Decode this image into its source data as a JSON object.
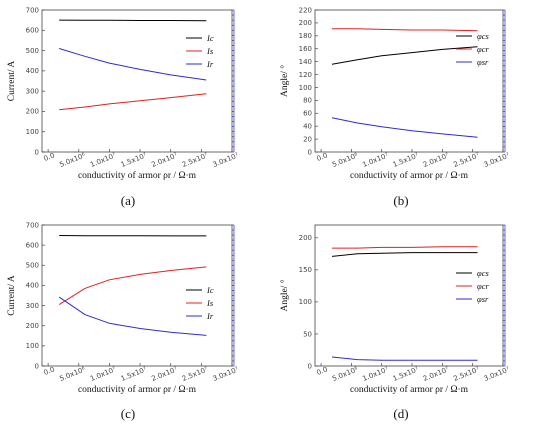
{
  "chart_data": [
    {
      "type": "line",
      "panel_label": "(a)",
      "ylabel": "Current/ A",
      "xlabel": "conductivity of armor ρr / Ω·m",
      "xlim": [
        -1000000,
        30000000
      ],
      "ylim": [
        0,
        700
      ],
      "xticks": [
        0,
        5000000,
        10000000,
        15000000,
        20000000,
        25000000,
        30000000
      ],
      "xtick_labels": [
        "0.0",
        "5.0x10⁶",
        "1.0x10⁷",
        "1.5x10⁷",
        "2.0x10⁷",
        "2.5x10⁷",
        "3.0x10⁷"
      ],
      "yticks": [
        0,
        100,
        200,
        300,
        400,
        500,
        600,
        700
      ],
      "ytick_labels": [
        "0",
        "100",
        "200",
        "300",
        "400",
        "500",
        "600",
        "700"
      ],
      "x": [
        1800000,
        6000000,
        10000000,
        15000000,
        20000000,
        25800000
      ],
      "series": [
        {
          "name": "Ic",
          "color": "#000000",
          "values": [
            650,
            649,
            649,
            648,
            648,
            647
          ]
        },
        {
          "name": "Is",
          "color": "#e02020",
          "values": [
            208,
            222,
            237,
            253,
            268,
            287
          ]
        },
        {
          "name": "Ir",
          "color": "#2b2bd6",
          "values": [
            510,
            472,
            438,
            407,
            380,
            355
          ]
        }
      ]
    },
    {
      "type": "line",
      "panel_label": "(b)",
      "ylabel": "Angle/ °",
      "xlabel": "conductivity of armor ρr / Ω·m",
      "xlim": [
        -1000000,
        30000000
      ],
      "ylim": [
        0,
        220
      ],
      "xticks": [
        0,
        5000000,
        10000000,
        15000000,
        20000000,
        25000000,
        30000000
      ],
      "xtick_labels": [
        "0.0",
        "5.0x10⁶",
        "1.0x10⁷",
        "1.5x10⁷",
        "2.0x10⁷",
        "2.5x10⁷",
        "3.0x10⁷"
      ],
      "yticks": [
        0,
        20,
        40,
        60,
        80,
        100,
        120,
        140,
        160,
        180,
        200,
        220
      ],
      "ytick_labels": [
        "0",
        "20",
        "40",
        "60",
        "80",
        "100",
        "120",
        "140",
        "160",
        "180",
        "200",
        "220"
      ],
      "x": [
        1800000,
        6000000,
        10000000,
        15000000,
        20000000,
        25800000
      ],
      "series": [
        {
          "name": "φcs",
          "color": "#000000",
          "values": [
            136,
            143,
            149,
            154,
            159,
            163
          ]
        },
        {
          "name": "φcr",
          "color": "#e02020",
          "values": [
            191,
            191,
            190,
            189,
            189,
            188
          ]
        },
        {
          "name": "φsr",
          "color": "#2b2bd6",
          "values": [
            53,
            45,
            39,
            33,
            28,
            23
          ]
        }
      ]
    },
    {
      "type": "line",
      "panel_label": "(c)",
      "ylabel": "Current/ A",
      "xlabel": "conductivity of armor ρr / Ω·m",
      "xlim": [
        -1000000,
        30000000
      ],
      "ylim": [
        0,
        700
      ],
      "xticks": [
        0,
        5000000,
        10000000,
        15000000,
        20000000,
        25000000,
        30000000
      ],
      "xtick_labels": [
        "0.0",
        "5.0x10⁶",
        "1.0x10⁷",
        "1.5x10⁷",
        "2.0x10⁷",
        "2.5x10⁷",
        "3.0x10⁷"
      ],
      "yticks": [
        0,
        100,
        200,
        300,
        400,
        500,
        600,
        700
      ],
      "ytick_labels": [
        "0",
        "100",
        "200",
        "300",
        "400",
        "500",
        "600",
        "700"
      ],
      "x": [
        1800000,
        6000000,
        10000000,
        15000000,
        20000000,
        25800000
      ],
      "series": [
        {
          "name": "Ic",
          "color": "#000000",
          "values": [
            648,
            647,
            647,
            647,
            646,
            646
          ]
        },
        {
          "name": "Is",
          "color": "#e02020",
          "values": [
            305,
            385,
            428,
            455,
            474,
            492
          ]
        },
        {
          "name": "Ir",
          "color": "#2b2bd6",
          "values": [
            342,
            255,
            212,
            186,
            168,
            152
          ]
        }
      ]
    },
    {
      "type": "line",
      "panel_label": "(d)",
      "ylabel": "Angle/ °",
      "xlabel": "conductivity of armor ρr / Ω·m",
      "xlim": [
        -1000000,
        30000000
      ],
      "ylim": [
        0,
        220
      ],
      "xticks": [
        0,
        5000000,
        10000000,
        15000000,
        20000000,
        25000000,
        30000000
      ],
      "xtick_labels": [
        "0.0",
        "5.0x10⁶",
        "1.0x10⁷",
        "1.5x10⁷",
        "2.0x10⁷",
        "2.5x10⁷",
        "3.0x10⁷"
      ],
      "yticks": [
        0,
        50,
        100,
        150,
        200
      ],
      "ytick_labels": [
        "0",
        "50",
        "100",
        "150",
        "200"
      ],
      "x": [
        1800000,
        6000000,
        10000000,
        15000000,
        20000000,
        25800000
      ],
      "series": [
        {
          "name": "φcs",
          "color": "#000000",
          "values": [
            171,
            175,
            176,
            177,
            177,
            177
          ]
        },
        {
          "name": "φcr",
          "color": "#e02020",
          "values": [
            184,
            184,
            185,
            185,
            186,
            186
          ]
        },
        {
          "name": "φsr",
          "color": "#2b2bd6",
          "values": [
            14,
            10,
            9,
            9,
            9,
            9
          ]
        }
      ]
    }
  ]
}
